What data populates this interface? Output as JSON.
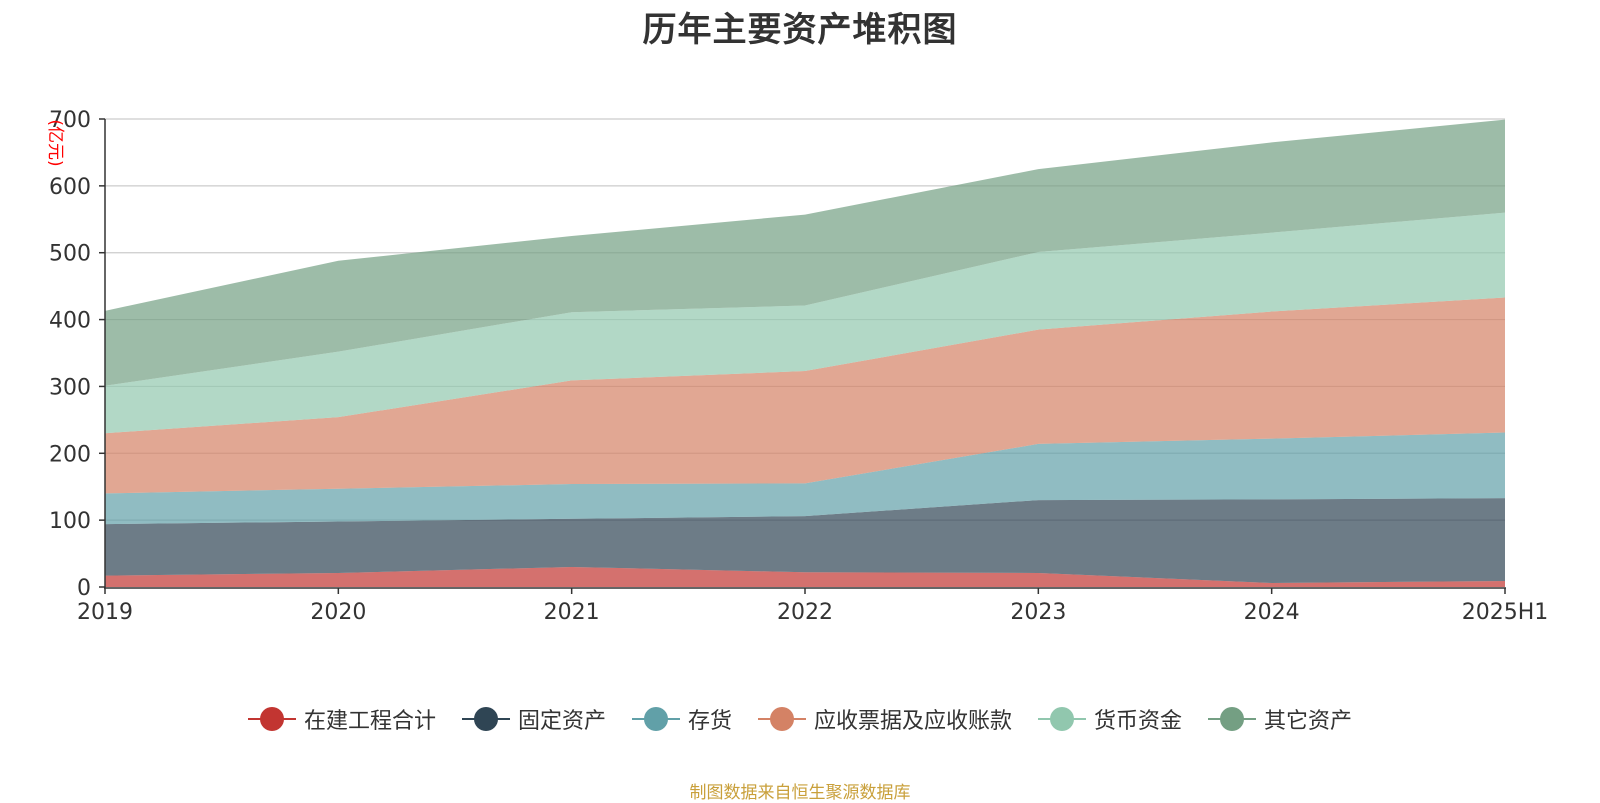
{
  "title": "历年主要资产堆积图",
  "source_note": "制图数据来自恒生聚源数据库",
  "chart_data": {
    "type": "area",
    "stacked": true,
    "title": "历年主要资产堆积图",
    "ylabel": "(亿元)",
    "xlabel": "",
    "categories": [
      "2019",
      "2020",
      "2021",
      "2022",
      "2023",
      "2024",
      "2025H1"
    ],
    "ylim": [
      0,
      700
    ],
    "yticks": [
      0,
      100,
      200,
      300,
      400,
      500,
      600,
      700
    ],
    "grid": true,
    "legend_position": "bottom",
    "series": [
      {
        "name": "在建工程合计",
        "color": "#c23531",
        "values": [
          17,
          21,
          30,
          22,
          21,
          6,
          9
        ]
      },
      {
        "name": "固定资产",
        "color": "#2f4554",
        "values": [
          77,
          77,
          72,
          84,
          109,
          125,
          124
        ]
      },
      {
        "name": "存货",
        "color": "#61a0a8",
        "values": [
          46,
          49,
          52,
          49,
          84,
          91,
          98
        ]
      },
      {
        "name": "应收票据及应收账款",
        "color": "#d48265",
        "values": [
          90,
          107,
          155,
          168,
          171,
          190,
          202
        ]
      },
      {
        "name": "货币资金",
        "color": "#91c7ae",
        "values": [
          71,
          98,
          102,
          98,
          116,
          118,
          127
        ]
      },
      {
        "name": "其它资产",
        "color": "#749f83",
        "values": [
          112,
          136,
          114,
          136,
          124,
          135,
          139
        ]
      }
    ]
  }
}
